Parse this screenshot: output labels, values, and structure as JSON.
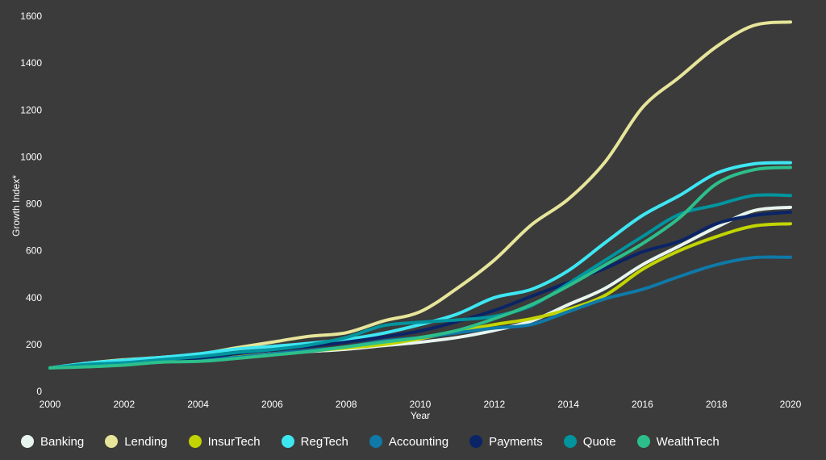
{
  "chart_data": {
    "type": "line",
    "xlabel": "Year",
    "ylabel": "Growth Index*",
    "xlim": [
      2000,
      2020
    ],
    "ylim": [
      0,
      1600
    ],
    "x_ticks": [
      "2000",
      "2002",
      "2004",
      "2006",
      "2008",
      "2010",
      "2012",
      "2014",
      "2016",
      "2018",
      "2020"
    ],
    "y_ticks": [
      "0",
      "200",
      "400",
      "600",
      "800",
      "1000",
      "1200",
      "1400",
      "1600"
    ],
    "legend_position": "bottom",
    "x": [
      2000,
      2001,
      2002,
      2003,
      2004,
      2005,
      2006,
      2007,
      2008,
      2009,
      2010,
      2011,
      2012,
      2013,
      2014,
      2015,
      2016,
      2017,
      2018,
      2019,
      2020
    ],
    "series": [
      {
        "name": "Banking",
        "color": "#e8f5ee",
        "values": [
          100,
          115,
          125,
          130,
          138,
          150,
          160,
          170,
          180,
          195,
          210,
          230,
          260,
          300,
          370,
          440,
          540,
          620,
          700,
          770,
          785
        ]
      },
      {
        "name": "Lending",
        "color": "#e6e59a",
        "values": [
          100,
          120,
          135,
          145,
          158,
          185,
          210,
          235,
          250,
          300,
          340,
          440,
          560,
          710,
          820,
          980,
          1210,
          1340,
          1470,
          1560,
          1575
        ]
      },
      {
        "name": "InsurTech",
        "color": "#c2d500",
        "values": [
          100,
          110,
          118,
          125,
          135,
          148,
          160,
          172,
          185,
          200,
          225,
          255,
          285,
          310,
          350,
          410,
          520,
          600,
          660,
          705,
          715
        ]
      },
      {
        "name": "RegTech",
        "color": "#3ee6f2",
        "values": [
          100,
          120,
          133,
          145,
          160,
          180,
          192,
          205,
          222,
          248,
          285,
          330,
          400,
          435,
          515,
          635,
          750,
          835,
          930,
          970,
          975
        ]
      },
      {
        "name": "Accounting",
        "color": "#0f79a8",
        "values": [
          100,
          110,
          115,
          125,
          135,
          145,
          160,
          175,
          190,
          215,
          230,
          250,
          270,
          285,
          340,
          395,
          435,
          490,
          540,
          570,
          572
        ]
      },
      {
        "name": "Payments",
        "color": "#0a2466",
        "values": [
          100,
          110,
          118,
          128,
          142,
          160,
          176,
          192,
          210,
          232,
          258,
          298,
          345,
          405,
          465,
          525,
          595,
          640,
          715,
          750,
          765
        ]
      },
      {
        "name": "Quote",
        "color": "#00949e",
        "values": [
          100,
          115,
          122,
          135,
          148,
          165,
          178,
          198,
          230,
          280,
          295,
          305,
          320,
          365,
          460,
          560,
          660,
          755,
          795,
          835,
          835
        ]
      },
      {
        "name": "WealthTech",
        "color": "#2dbf8b",
        "values": [
          100,
          105,
          112,
          125,
          128,
          140,
          155,
          170,
          190,
          210,
          230,
          260,
          310,
          370,
          450,
          540,
          630,
          740,
          885,
          945,
          955
        ]
      }
    ]
  }
}
